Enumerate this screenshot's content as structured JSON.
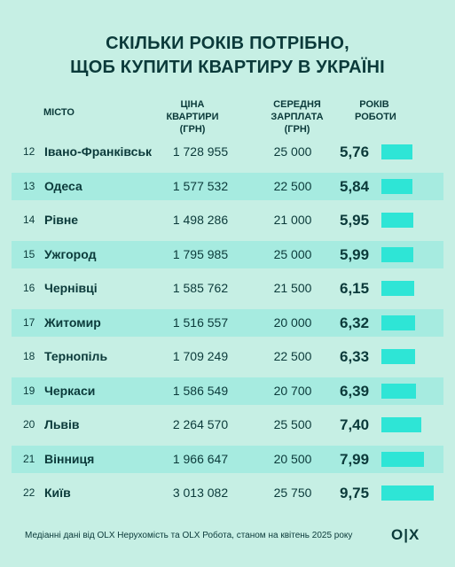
{
  "title_line1": "СКІЛЬКИ РОКІВ ПОТРІБНО,",
  "title_line2": "ЩОБ КУПИТИ КВАРТИРУ В УКРАЇНІ",
  "headers": {
    "city": "Місто",
    "price_line1": "Ціна",
    "price_line2": "квартири (грн)",
    "salary_line1": "Середня",
    "salary_line2": "зарплата (грн)",
    "years_line1": "Років",
    "years_line2": "роботи"
  },
  "footer": "Медіанні дані від OLX Нерухомість та OLX Робота, станом на квітень 2025 року",
  "logo": "OLX",
  "colors": {
    "background": "#c6efe4",
    "bar": "#2ee5d6",
    "row_highlight": "#a6ebe0",
    "text": "#0b3a3a"
  },
  "chart_data": {
    "type": "bar",
    "categories": [
      "Івано-Франківськ",
      "Одеса",
      "Рівне",
      "Ужгород",
      "Чернівці",
      "Житомир",
      "Тернопіль",
      "Черкаси",
      "Львів",
      "Вінниця",
      "Київ"
    ],
    "ranks": [
      "12",
      "13",
      "14",
      "15",
      "16",
      "17",
      "18",
      "19",
      "20",
      "21",
      "22"
    ],
    "prices": [
      "1 728 955",
      "1 577 532",
      "1 498 286",
      "1 795 985",
      "1 585 762",
      "1 516 557",
      "1 709 249",
      "1 586 549",
      "2 264 570",
      "1 966 647",
      "3 013 082"
    ],
    "salaries": [
      "25 000",
      "22 500",
      "21 000",
      "25 000",
      "21 500",
      "20 000",
      "22 500",
      "20 700",
      "25 500",
      "20 500",
      "25 750"
    ],
    "values": [
      5.76,
      5.84,
      5.95,
      5.99,
      6.15,
      6.32,
      6.33,
      6.39,
      7.4,
      7.99,
      9.75
    ],
    "value_labels": [
      "5,76",
      "5,84",
      "5,95",
      "5,99",
      "6,15",
      "6,32",
      "6,33",
      "6,39",
      "7,40",
      "7,99",
      "9,75"
    ]
  }
}
